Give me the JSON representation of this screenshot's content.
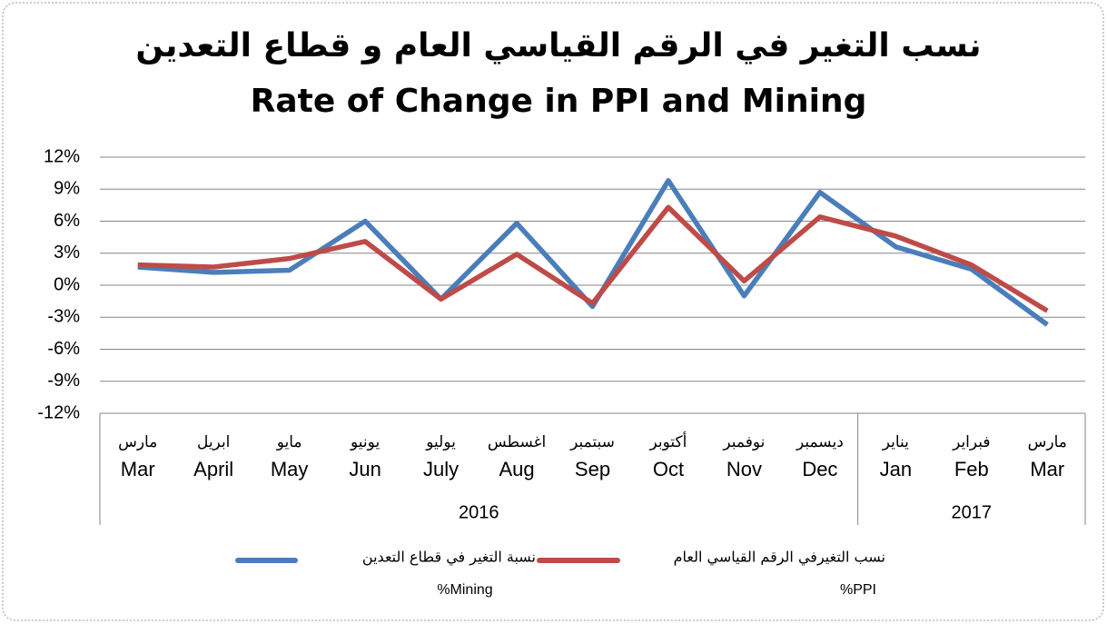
{
  "chart_data": {
    "type": "line",
    "title_ar": "نسب التغير في الرقم القياسي العام و قطاع التعدين",
    "title": "Rate of Change in PPI and Mining",
    "category_groups": [
      {
        "label": "2016",
        "categories": [
          "Mar",
          "April",
          "May",
          "Jun",
          "July",
          "Aug",
          "Sep",
          "Oct",
          "Nov",
          "Dec"
        ],
        "categories_ar": [
          "مارس",
          "ابريل",
          "مايو",
          "يونيو",
          "يوليو",
          "اغسطس",
          "سبتمبر",
          "أكتوبر",
          "نوفمبر",
          "ديسمبر"
        ]
      },
      {
        "label": "2017",
        "categories": [
          "Jan",
          "Feb",
          "Mar"
        ],
        "categories_ar": [
          "يناير",
          "فبراير",
          "مارس"
        ]
      }
    ],
    "series": [
      {
        "name": "نسبة التغير في قطاع التعدين",
        "name_en": "%Mining",
        "color": "#4a7ebb",
        "values": [
          1.7,
          1.2,
          1.4,
          6.0,
          -1.3,
          5.8,
          -2.0,
          9.8,
          -1.0,
          8.7,
          3.6,
          1.5,
          -3.7
        ]
      },
      {
        "name": "نسب  التغيرفي الرقم القياسي العام",
        "name_en": "%PPI",
        "color": "#be4b48",
        "values": [
          1.9,
          1.7,
          2.5,
          4.1,
          -1.3,
          2.9,
          -1.7,
          7.3,
          0.4,
          6.4,
          4.6,
          1.9,
          -2.4
        ]
      }
    ],
    "ylim": [
      -12,
      12
    ],
    "yticks": [
      {
        "value": -12,
        "label": "-12%"
      },
      {
        "value": -9,
        "label": "-9%"
      },
      {
        "value": -6,
        "label": "-6%"
      },
      {
        "value": -3,
        "label": "-3%"
      },
      {
        "value": 0,
        "label": "0%"
      },
      {
        "value": 3,
        "label": "3%"
      },
      {
        "value": 6,
        "label": "6%"
      },
      {
        "value": 9,
        "label": "9%"
      },
      {
        "value": 12,
        "label": "12%"
      }
    ],
    "grid": true
  }
}
